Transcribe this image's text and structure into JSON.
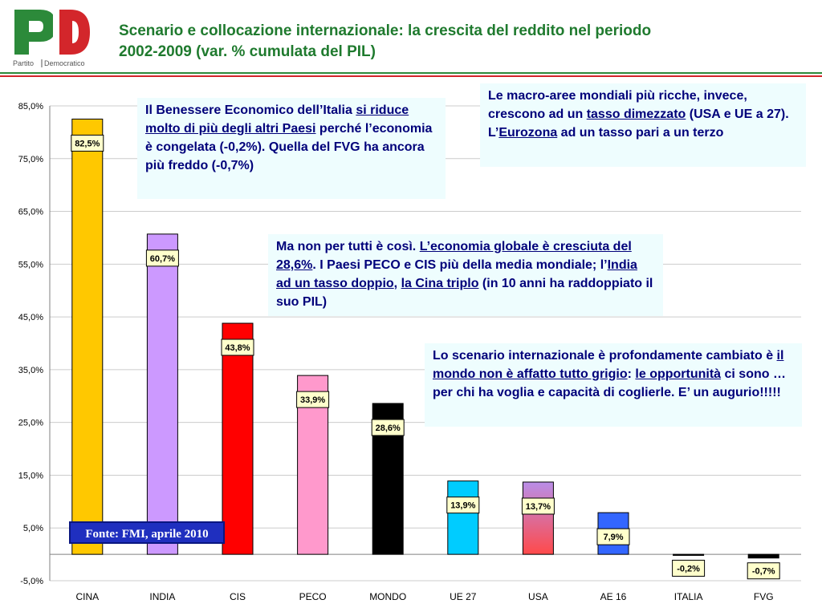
{
  "logo": {
    "letters": "PD",
    "caption_left": "Partito",
    "caption_right": "Democratico"
  },
  "header": {
    "title_line1": "Scenario e collocazione internazionale: la crescita del reddito nel periodo",
    "title_line2": "2002-2009 (var. % cumulata del PIL)"
  },
  "notes": {
    "italy": {
      "p1": "Il Benessere Economico dell’Italia ",
      "u1": "si riduce molto di più degli altri Paesi",
      "p2": " perché l’economia è congelata (-0,2%). Quella del FVG ha ancora più freddo (-0,7%)"
    },
    "macro": {
      "p1": "Le macro-aree mondiali più ricche, invece, crescono ad un ",
      "u1": "tasso dimezzato",
      "p2": " (USA e UE a 27). L’",
      "u2": "Eurozona",
      "p3": " ad un tasso pari a un terzo"
    },
    "global": {
      "p1": "Ma non per tutti è così. ",
      "u1": "L’economia globale è cresciuta del 28,6%",
      "p2": ". I Paesi PECO e CIS più della media mondiale; l’",
      "u2": "India ad un tasso doppio",
      "p3": ", ",
      "u3": "la Cina triplo",
      "p4": " (in 10 anni ha raddoppiato il suo PIL)"
    },
    "scenario": {
      "p1": "Lo scenario internazionale è profondamente cambiato è ",
      "u1": "il mondo non è affatto tutto grigio",
      "p2": ": ",
      "u2": "le opportunità",
      "p3": " ci sono … per chi ha voglia e capacità di coglierle. E’ un augurio!!!!!"
    }
  },
  "source": "Fonte: FMI, aprile 2010",
  "chart_data": {
    "type": "bar",
    "title": "Scenario e collocazione internazionale: la crescita del reddito nel periodo 2002-2009 (var. % cumulata del PIL)",
    "categories": [
      "CINA",
      "INDIA",
      "CIS",
      "PECO",
      "MONDO",
      "UE 27",
      "USA",
      "AE 16",
      "ITALIA",
      "FVG"
    ],
    "values": [
      82.5,
      60.7,
      43.8,
      33.9,
      28.6,
      13.9,
      13.7,
      7.9,
      -0.2,
      -0.7
    ],
    "data_labels": [
      "82,5%",
      "60,7%",
      "43,8%",
      "33,9%",
      "28,6%",
      "13,9%",
      "13,7%",
      "7,9%",
      "-0,2%",
      "-0,7%"
    ],
    "bar_colors": [
      "#ffc800",
      "#cc99ff",
      "#ff0000",
      "#ff99cc",
      "#000000",
      "#00ccff",
      "#e85a78",
      "#3366ff",
      "#000000",
      "#000000"
    ],
    "yticks": [
      -5,
      5,
      15,
      25,
      35,
      45,
      55,
      65,
      75,
      85
    ],
    "ytick_labels": [
      "-5,0%",
      "5,0%",
      "15,0%",
      "25,0%",
      "35,0%",
      "45,0%",
      "55,0%",
      "65,0%",
      "75,0%",
      "85,0%"
    ],
    "ylim": [
      -5,
      85
    ],
    "grid": true,
    "xlabel": "",
    "ylabel": ""
  }
}
